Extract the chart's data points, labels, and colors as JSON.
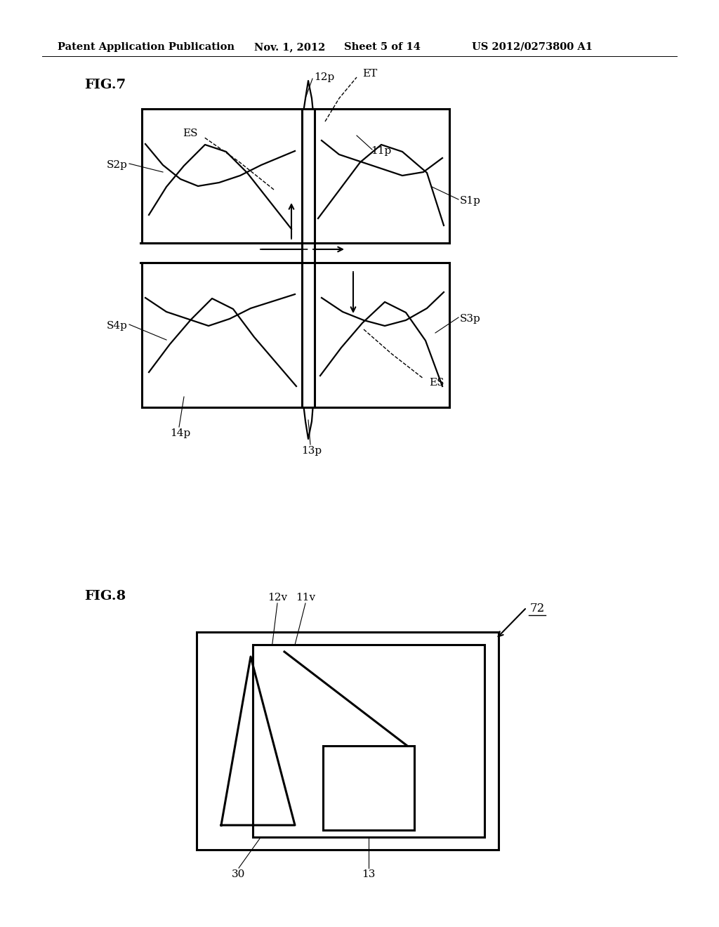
{
  "bg_color": "#ffffff",
  "header_text": "Patent Application Publication",
  "header_date": "Nov. 1, 2012",
  "header_sheet": "Sheet 5 of 14",
  "header_patent": "US 2012/0273800 A1",
  "fig7_label": "FIG.7",
  "fig8_label": "FIG.8",
  "line_color": "#000000",
  "label_fontsize": 11,
  "header_fontsize": 10.5
}
